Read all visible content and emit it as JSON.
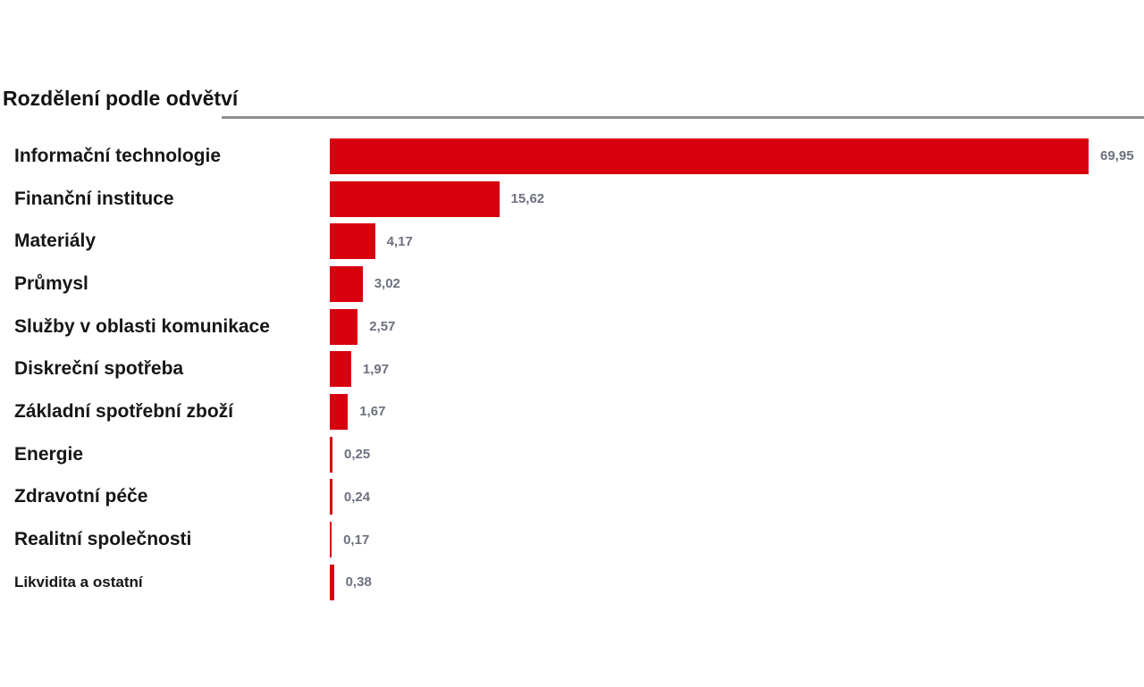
{
  "chart_data": {
    "type": "bar",
    "orientation": "horizontal",
    "title": "Rozdělení podle odvětví",
    "categories": [
      "Informační technologie",
      "Finanční instituce",
      "Materiály",
      "Průmysl",
      "Služby v oblasti komunikace",
      "Diskreční spotřeba",
      "Základní spotřební zboží",
      "Energie",
      "Zdravotní péče",
      "Realitní společnosti",
      "Likvidita a ostatní"
    ],
    "values": [
      69.95,
      15.62,
      4.17,
      3.02,
      2.57,
      1.97,
      1.67,
      0.25,
      0.24,
      0.17,
      0.38
    ],
    "values_display": [
      "69,95",
      "15,62",
      "4,17",
      "3,02",
      "2,57",
      "1,97",
      "1,67",
      "0,25",
      "0,24",
      "0,17",
      "0,38"
    ],
    "xlabel": "",
    "ylabel": "",
    "xlim": [
      0,
      69.95
    ],
    "grid": false,
    "legend": false,
    "data_labels": "outside-end",
    "bar_color": "#d8000f",
    "value_label_color": "#6d717e",
    "title_rule_color": "#8f8f8f",
    "small_label_categories": [
      "Likvidita a ostatní"
    ]
  }
}
